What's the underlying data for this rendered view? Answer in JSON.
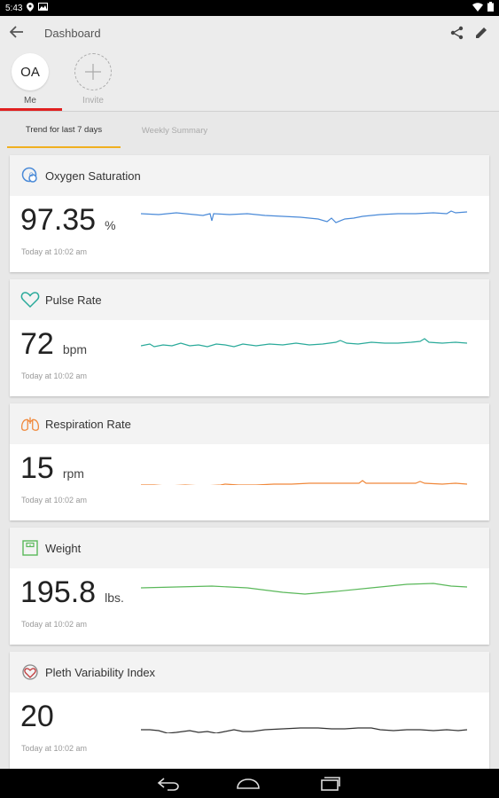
{
  "status_bar": {
    "time": "5:43",
    "icons": [
      "location-icon",
      "image-icon",
      "wifi-icon",
      "battery-icon"
    ]
  },
  "header": {
    "title": "Dashboard",
    "actions": [
      "share-icon",
      "edit-icon"
    ]
  },
  "profiles": [
    {
      "initials": "OA",
      "label": "Me",
      "selected": true
    },
    {
      "label": "Invite",
      "icon": "plus-icon"
    }
  ],
  "tabs": [
    {
      "label": "Trend for last 7 days",
      "active": true
    },
    {
      "label": "Weekly Summary",
      "active": false
    }
  ],
  "colors": {
    "accent_red": "#e02020",
    "tab_underline": "#f0b020"
  },
  "cards": [
    {
      "title": "Oxygen Saturation",
      "value": "97.35",
      "unit": "%",
      "time": "Today at 10:02 am",
      "color": "#4a8ad8",
      "icon": "oxygen-icon"
    },
    {
      "title": "Pulse Rate",
      "value": "72",
      "unit": "bpm",
      "time": "Today at 10:02 am",
      "color": "#2aaa9a",
      "icon": "heart-icon"
    },
    {
      "title": "Respiration Rate",
      "value": "15",
      "unit": "rpm",
      "time": "Today at 10:02 am",
      "color": "#f0883a",
      "icon": "lungs-icon"
    },
    {
      "title": "Weight",
      "value": "195.8",
      "unit": "lbs.",
      "time": "Today at 10:02 am",
      "color": "#5ab85a",
      "icon": "scale-icon"
    },
    {
      "title": "Pleth Variability Index",
      "value": "20",
      "unit": "",
      "time": "Today at 10:02 am",
      "color": "#333333",
      "icon": "pleth-icon"
    }
  ],
  "nav": [
    "back-nav-icon",
    "home-nav-icon",
    "recents-nav-icon"
  ]
}
